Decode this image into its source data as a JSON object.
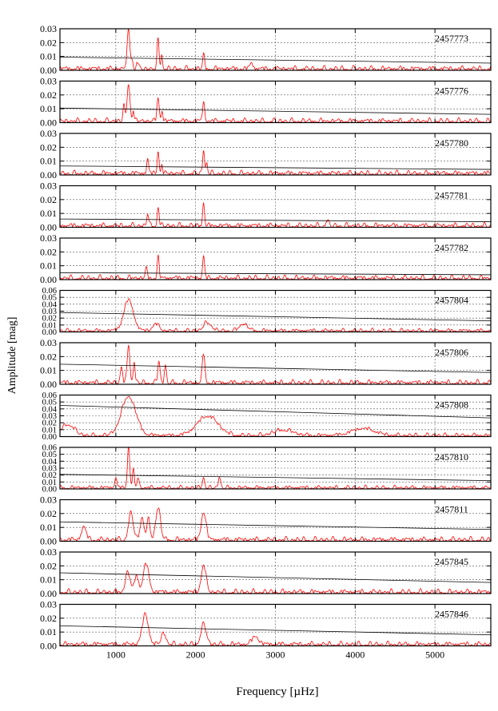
{
  "figure": {
    "ylabel": "Amplitude [mag]",
    "xlabel": "Frequency [µHz]"
  },
  "colors": {
    "spectrum": "#ff0000",
    "threshold": "#000000",
    "grid": "#555555"
  },
  "chart_data": {
    "type": "line",
    "xlim": [
      300,
      5700
    ],
    "x_ticks": [
      1000,
      2000,
      3000,
      4000,
      5000
    ],
    "x_tick_labels": [
      "1000",
      "2000",
      "3000",
      "4000",
      "5000"
    ],
    "grid": true,
    "xlabel": "Frequency [µHz]",
    "ylabel": "Amplitude [mag]",
    "panels": [
      {
        "label": "2457773",
        "ylim": [
          0,
          0.03
        ],
        "yticks": [
          "0.00",
          "0.01",
          "0.02",
          "0.03"
        ],
        "threshold": [
          0.0095,
          0.0052
        ],
        "peaks": [
          [
            1160,
            0.027,
            18
          ],
          [
            1205,
            0.006,
            12
          ],
          [
            1270,
            0.005,
            12
          ],
          [
            1530,
            0.021,
            12
          ],
          [
            1575,
            0.011,
            10
          ],
          [
            2100,
            0.01,
            12
          ],
          [
            2700,
            0.004,
            20
          ]
        ]
      },
      {
        "label": "2457776",
        "ylim": [
          0,
          0.03
        ],
        "yticks": [
          "0.00",
          "0.01",
          "0.02",
          "0.03"
        ],
        "threshold": [
          0.0105,
          0.006
        ],
        "peaks": [
          [
            1100,
            0.011,
            12
          ],
          [
            1160,
            0.027,
            18
          ],
          [
            1220,
            0.008,
            10
          ],
          [
            1530,
            0.017,
            14
          ],
          [
            1580,
            0.008,
            10
          ],
          [
            2100,
            0.013,
            14
          ]
        ]
      },
      {
        "label": "2457780",
        "ylim": [
          0,
          0.03
        ],
        "yticks": [
          "0.00",
          "0.01",
          "0.02",
          "0.03"
        ],
        "threshold": [
          0.0065,
          0.004
        ],
        "peaks": [
          [
            1400,
            0.01,
            12
          ],
          [
            1530,
            0.016,
            12
          ],
          [
            1575,
            0.006,
            10
          ],
          [
            2100,
            0.017,
            12
          ],
          [
            2140,
            0.008,
            10
          ]
        ]
      },
      {
        "label": "2457781",
        "ylim": [
          0,
          0.03
        ],
        "yticks": [
          "0.00",
          "0.01",
          "0.02",
          "0.03"
        ],
        "threshold": [
          0.006,
          0.004
        ],
        "peaks": [
          [
            1400,
            0.009,
            12
          ],
          [
            1530,
            0.014,
            12
          ],
          [
            2100,
            0.017,
            12
          ],
          [
            3650,
            0.004,
            16
          ]
        ]
      },
      {
        "label": "2457782",
        "ylim": [
          0,
          0.03
        ],
        "yticks": [
          "0.00",
          "0.01",
          "0.02",
          "0.03"
        ],
        "threshold": [
          0.005,
          0.0035
        ],
        "peaks": [
          [
            1380,
            0.007,
            12
          ],
          [
            1530,
            0.015,
            12
          ],
          [
            2100,
            0.016,
            12
          ]
        ]
      },
      {
        "label": "2457804",
        "ylim": [
          0,
          0.06
        ],
        "yticks": [
          "0.00",
          "0.01",
          "0.02",
          "0.03",
          "0.04",
          "0.05",
          "0.06"
        ],
        "threshold": [
          0.028,
          0.016
        ],
        "peaks": [
          [
            1160,
            0.044,
            60
          ],
          [
            1500,
            0.01,
            40
          ],
          [
            2150,
            0.012,
            50
          ],
          [
            2600,
            0.01,
            50
          ]
        ]
      },
      {
        "label": "2457806",
        "ylim": [
          0,
          0.03
        ],
        "yticks": [
          "0.00",
          "0.01",
          "0.02",
          "0.03"
        ],
        "threshold": [
          0.0145,
          0.0085
        ],
        "peaks": [
          [
            1070,
            0.012,
            14
          ],
          [
            1160,
            0.028,
            16
          ],
          [
            1230,
            0.015,
            12
          ],
          [
            1540,
            0.016,
            14
          ],
          [
            1620,
            0.013,
            12
          ],
          [
            2100,
            0.021,
            16
          ]
        ]
      },
      {
        "label": "2457808",
        "ylim": [
          0,
          0.06
        ],
        "yticks": [
          "0.00",
          "0.01",
          "0.02",
          "0.03",
          "0.04",
          "0.05",
          "0.06"
        ],
        "threshold": [
          0.045,
          0.027
        ],
        "peaks": [
          [
            400,
            0.016,
            80
          ],
          [
            1160,
            0.056,
            90
          ],
          [
            2150,
            0.028,
            130
          ],
          [
            3100,
            0.008,
            120
          ],
          [
            4100,
            0.01,
            140
          ]
        ]
      },
      {
        "label": "2457810",
        "ylim": [
          0,
          0.06
        ],
        "yticks": [
          "0.00",
          "0.01",
          "0.02",
          "0.03",
          "0.04",
          "0.05",
          "0.06"
        ],
        "threshold": [
          0.021,
          0.012
        ],
        "peaks": [
          [
            1000,
            0.014,
            14
          ],
          [
            1160,
            0.061,
            14
          ],
          [
            1220,
            0.026,
            12
          ],
          [
            1280,
            0.015,
            12
          ],
          [
            2100,
            0.016,
            14
          ],
          [
            2300,
            0.016,
            14
          ]
        ]
      },
      {
        "label": "2457811",
        "ylim": [
          0,
          0.03
        ],
        "yticks": [
          "0.00",
          "0.01",
          "0.02",
          "0.03"
        ],
        "threshold": [
          0.014,
          0.0085
        ],
        "peaks": [
          [
            600,
            0.009,
            30
          ],
          [
            1190,
            0.019,
            30
          ],
          [
            1330,
            0.016,
            25
          ],
          [
            1410,
            0.014,
            20
          ],
          [
            1530,
            0.023,
            30
          ],
          [
            2100,
            0.02,
            30
          ]
        ]
      },
      {
        "label": "2457845",
        "ylim": [
          0,
          0.03
        ],
        "yticks": [
          "0.00",
          "0.01",
          "0.02",
          "0.03"
        ],
        "threshold": [
          0.015,
          0.008
        ],
        "peaks": [
          [
            1150,
            0.014,
            30
          ],
          [
            1260,
            0.012,
            25
          ],
          [
            1380,
            0.02,
            35
          ],
          [
            2100,
            0.019,
            30
          ]
        ]
      },
      {
        "label": "2457846",
        "ylim": [
          0,
          0.03
        ],
        "yticks": [
          "0.00",
          "0.01",
          "0.02",
          "0.03"
        ],
        "threshold": [
          0.0145,
          0.008
        ],
        "peaks": [
          [
            1370,
            0.021,
            40
          ],
          [
            1600,
            0.008,
            30
          ],
          [
            2100,
            0.014,
            35
          ],
          [
            2750,
            0.006,
            40
          ]
        ]
      }
    ]
  }
}
